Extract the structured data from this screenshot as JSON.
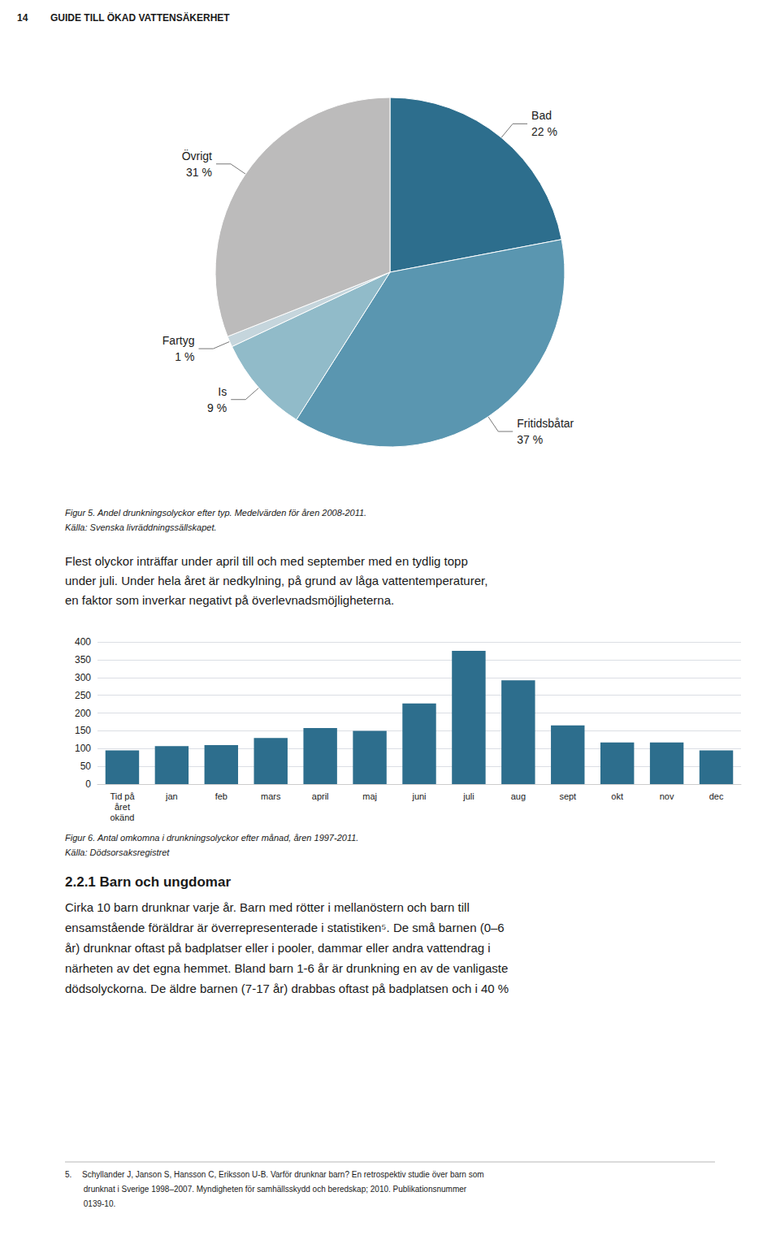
{
  "chart_data": [
    {
      "type": "pie",
      "categories": [
        "Bad",
        "Fritidsbåtar",
        "Is",
        "Fartyg",
        "Övrigt"
      ],
      "values": [
        22,
        37,
        9,
        1,
        31
      ],
      "value_labels": [
        "22 %",
        "37 %",
        "9 %",
        "1 %",
        "31 %"
      ],
      "colors": [
        "#2d6e8d",
        "#5a96b0",
        "#91bbc9",
        "#c5d5dc",
        "#bcbbbb"
      ],
      "data_labels": true,
      "annotations": [
        "14",
        "GUIDE TILL ÖKAD VATTENSÄKERHET",
        "Figur 5. Andel drunkningsolyckor efter typ. Medelvärden för åren 2008-2011.",
        "Källa: Svenska livräddningssällskapet.",
        "Flest olyckor inträffar under april till och med september med en tydlig topp\nunder juli. Under hela året är nedkylning, på grund av låga vattentemperaturer,\nen faktor som inverkar negativt på överlevnadsmöjligheterna."
      ]
    },
    {
      "type": "bar",
      "categories": [
        "Tid på\nåret\nokänd",
        "jan",
        "feb",
        "mars",
        "april",
        "maj",
        "juni",
        "juli",
        "aug",
        "sept",
        "okt",
        "nov",
        "dec"
      ],
      "values": [
        95,
        107,
        110,
        130,
        158,
        150,
        227,
        375,
        292,
        165,
        117,
        117,
        95
      ],
      "color": "#2d6e8d",
      "ylim": [
        0,
        400
      ],
      "yticks": [
        0,
        50,
        100,
        150,
        200,
        250,
        300,
        350,
        400
      ],
      "grid": true,
      "annotations": [
        "Figur 6. Antal omkomna i drunkningsolyckor efter månad, åren 1997-2011.",
        "Källa: Dödsorsaksregistret",
        "2.2.1 Barn och ungdomar",
        "Cirka 10 barn drunknar varje år. Barn med rötter i mellanöstern och barn till\nensamstående föräldrar är överrepresenterade i statistiken⁵. De små barnen (0–6\når) drunknar oftast på badplatser eller i pooler, dammar eller andra vattendrag i\nnärheten av det egna hemmet. Bland barn 1-6 år är drunkning en av de vanligaste\ndödsolyckorna. De äldre barnen (7-17 år) drabbas oftast på badplatsen och i 40 %",
        "5.  Schyllander J, Janson S, Hansson C, Eriksson U-B. Varför drunknar barn? En retrospektiv studie över barn som",
        "   drunknat i Sverige 1998–2007. Myndigheten för samhällsskydd och beredskap; 2010. Publikationsnummer",
        "   0139-10."
      ]
    }
  ]
}
